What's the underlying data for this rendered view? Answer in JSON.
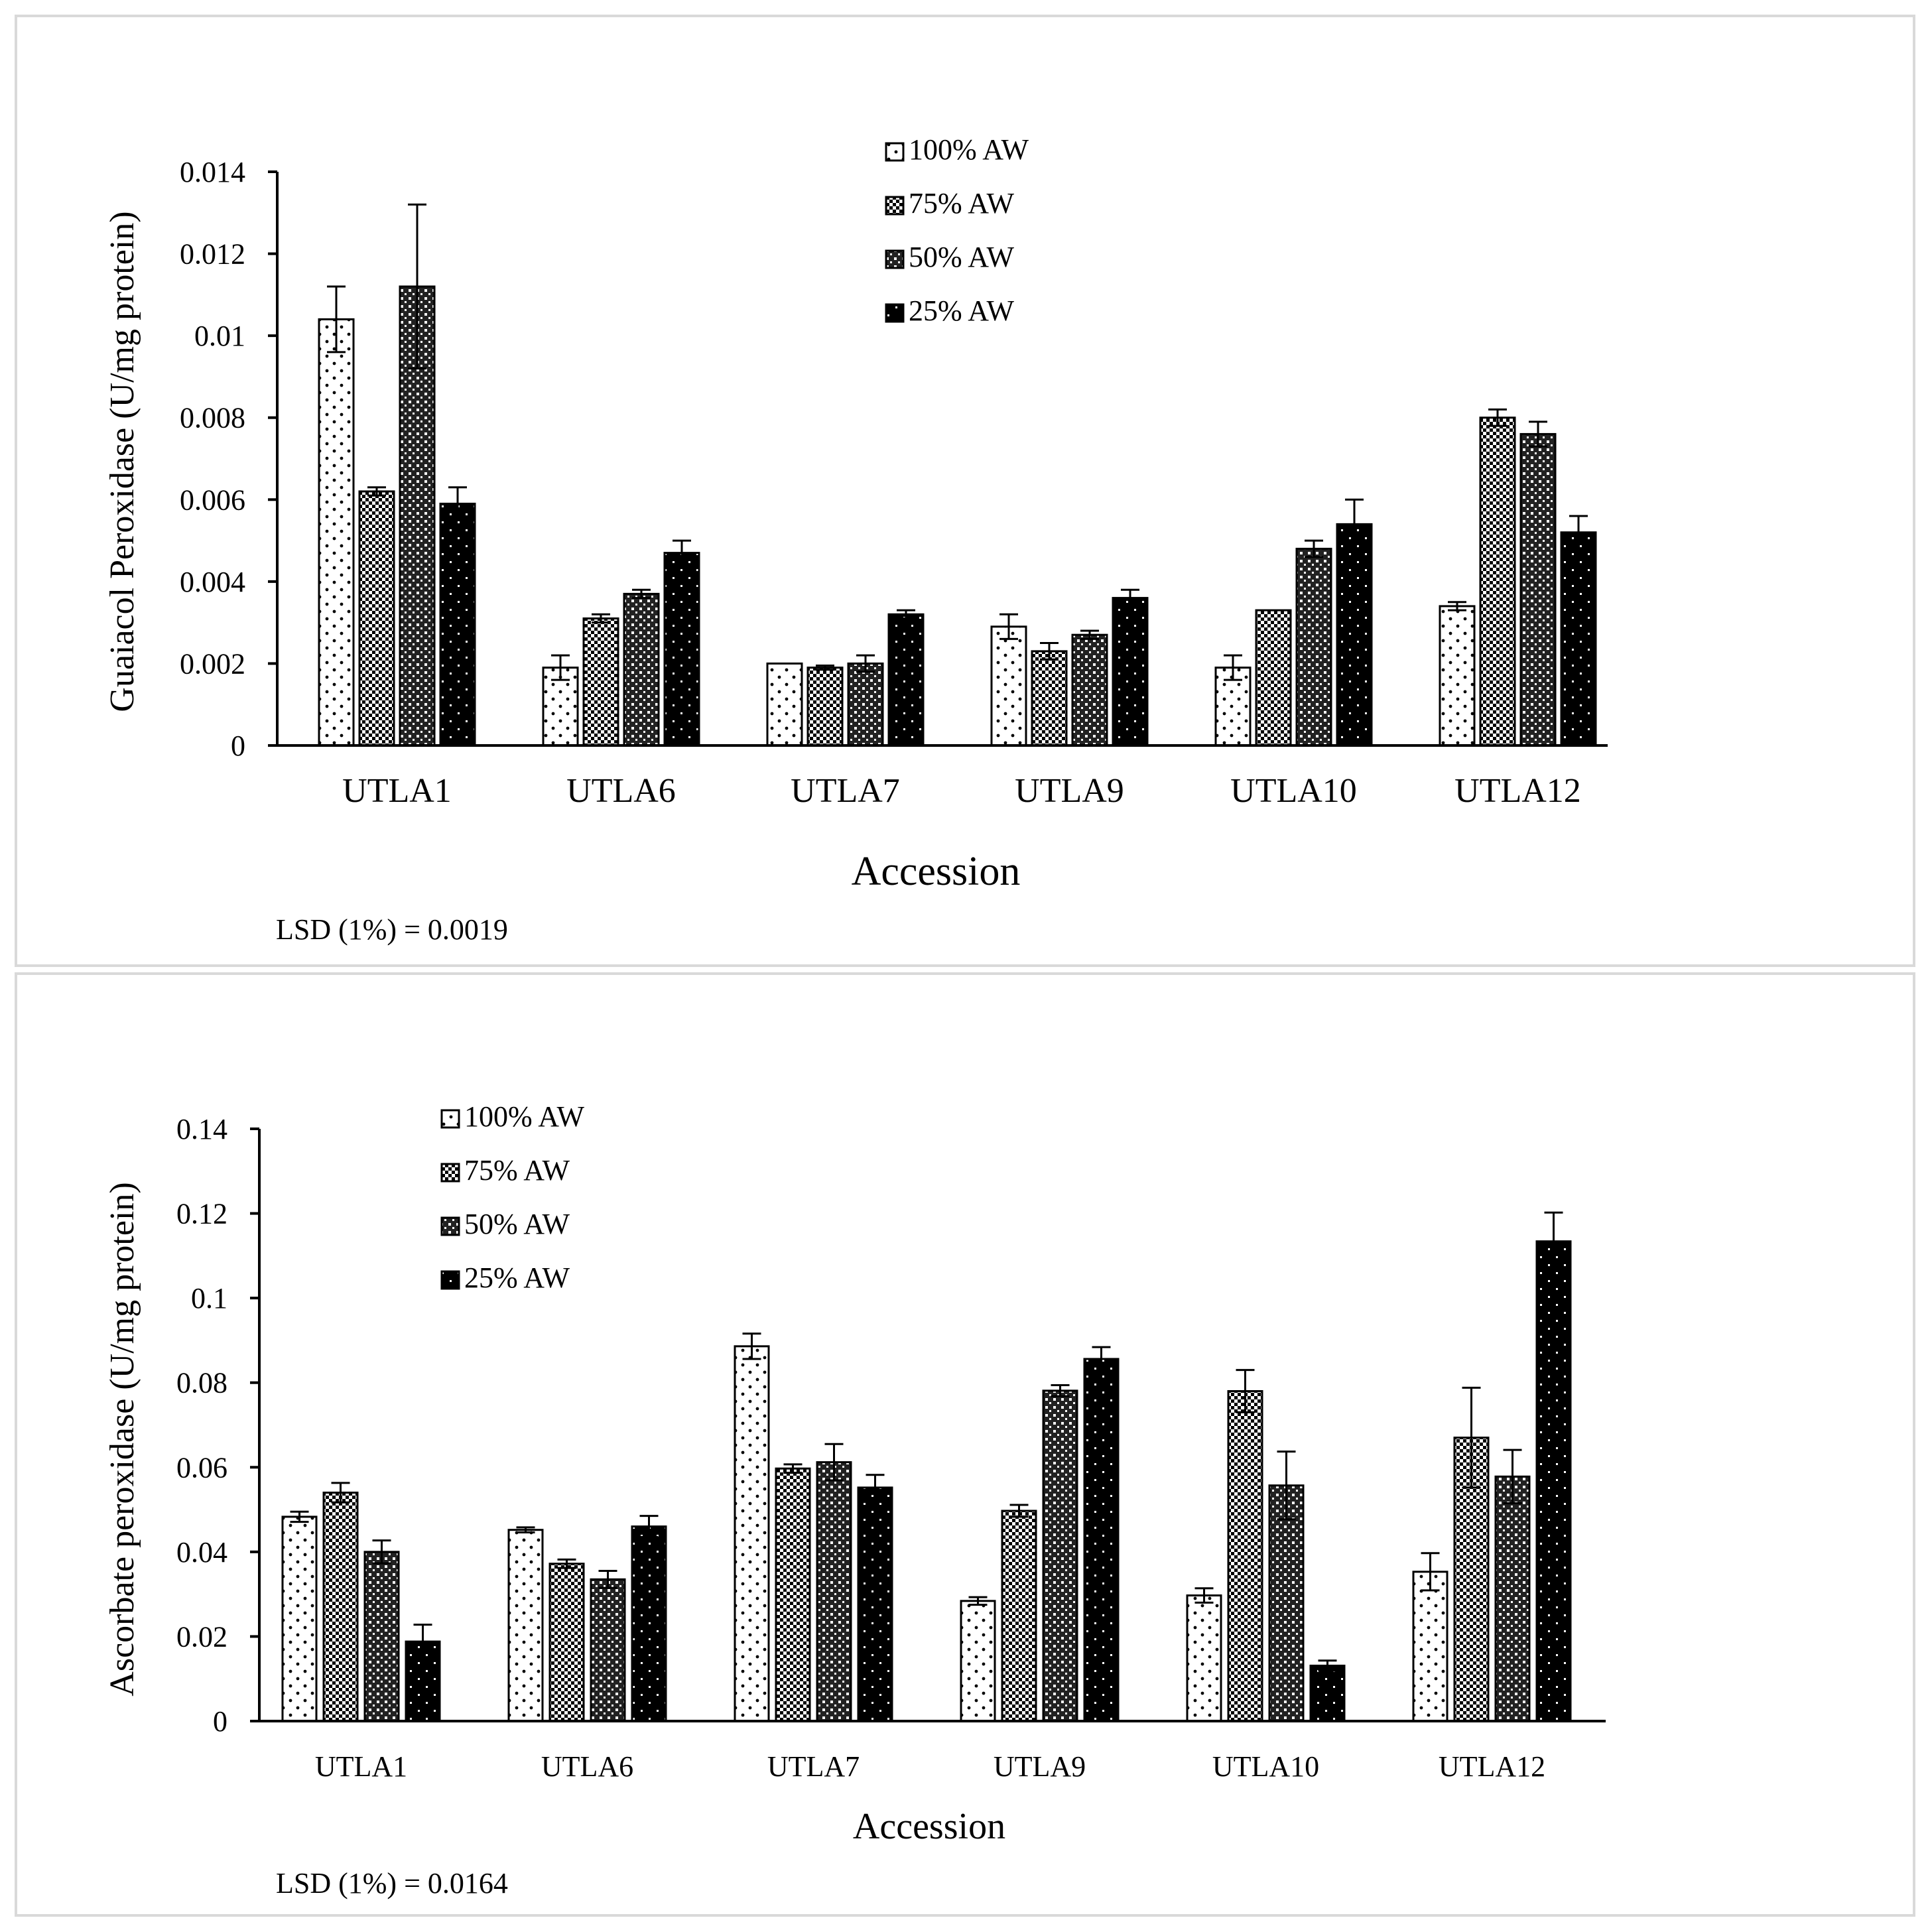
{
  "legend_labels": [
    "100% AW",
    "75% AW",
    "50% AW",
    "25% AW"
  ],
  "chart_data": [
    {
      "type": "bar",
      "title": "",
      "xlabel": "Accession",
      "ylabel": "Guaiacol Peroxidase (U/mg protein)",
      "categories": [
        "UTLA1",
        "UTLA6",
        "UTLA7",
        "UTLA9",
        "UTLA10",
        "UTLA12"
      ],
      "ylim": [
        0,
        0.014
      ],
      "yticks": [
        0,
        0.002,
        0.004,
        0.006,
        0.008,
        0.01,
        0.012,
        0.014
      ],
      "ytick_labels": [
        "0",
        "0.002",
        "0.004",
        "0.006",
        "0.008",
        "0.01",
        "0.012",
        "0.014"
      ],
      "legend_position": "top-center",
      "note": "LSD (1%) = 0.0019",
      "series": [
        {
          "name": "100% AW",
          "values": [
            0.0104,
            0.0019,
            0.002,
            0.0029,
            0.0019,
            0.0034
          ],
          "errors": [
            0.0008,
            0.0003,
            0.0,
            0.0003,
            0.0003,
            0.0001
          ]
        },
        {
          "name": "75% AW",
          "values": [
            0.0062,
            0.0031,
            0.0019,
            0.0023,
            0.0033,
            0.008
          ],
          "errors": [
            0.0001,
            0.0001,
            5e-05,
            0.0002,
            0.0,
            0.0002
          ]
        },
        {
          "name": "50% AW",
          "values": [
            0.0112,
            0.0037,
            0.002,
            0.0027,
            0.0048,
            0.0076
          ],
          "errors": [
            0.002,
            0.0001,
            0.0002,
            0.0001,
            0.0002,
            0.0003
          ]
        },
        {
          "name": "25% AW",
          "values": [
            0.0059,
            0.0047,
            0.0032,
            0.0036,
            0.0054,
            0.0052
          ],
          "errors": [
            0.0004,
            0.0003,
            0.0001,
            0.0002,
            0.0006,
            0.0004
          ]
        }
      ]
    },
    {
      "type": "bar",
      "title": "",
      "xlabel": "Accession",
      "ylabel": "Ascorbate peroxidase (U/mg protein)",
      "categories": [
        "UTLA1",
        "UTLA6",
        "UTLA7",
        "UTLA9",
        "UTLA10",
        "UTLA12"
      ],
      "ylim": [
        0,
        0.14
      ],
      "yticks": [
        0,
        0.02,
        0.04,
        0.06,
        0.08,
        0.1,
        0.12,
        0.14
      ],
      "ytick_labels": [
        "0",
        "0.02",
        "0.04",
        "0.06",
        "0.08",
        "0.1",
        "0.12",
        "0.14"
      ],
      "legend_position": "top-left",
      "note": "LSD (1%) = 0.0164",
      "series": [
        {
          "name": "100% AW",
          "values": [
            0.0483,
            0.0452,
            0.0886,
            0.0284,
            0.0297,
            0.0353
          ],
          "errors": [
            0.0012,
            0.0006,
            0.003,
            0.0009,
            0.0017,
            0.0044
          ]
        },
        {
          "name": "75% AW",
          "values": [
            0.054,
            0.0372,
            0.0597,
            0.0497,
            0.078,
            0.067
          ],
          "errors": [
            0.0023,
            0.001,
            0.001,
            0.0014,
            0.005,
            0.0118
          ]
        },
        {
          "name": "50% AW",
          "values": [
            0.04,
            0.0335,
            0.0612,
            0.0781,
            0.0557,
            0.0578
          ],
          "errors": [
            0.0027,
            0.002,
            0.0043,
            0.0013,
            0.008,
            0.0063
          ]
        },
        {
          "name": "25% AW",
          "values": [
            0.0188,
            0.046,
            0.0552,
            0.0856,
            0.0131,
            0.1134
          ],
          "errors": [
            0.004,
            0.0025,
            0.003,
            0.0028,
            0.0012,
            0.0068
          ]
        }
      ]
    }
  ]
}
